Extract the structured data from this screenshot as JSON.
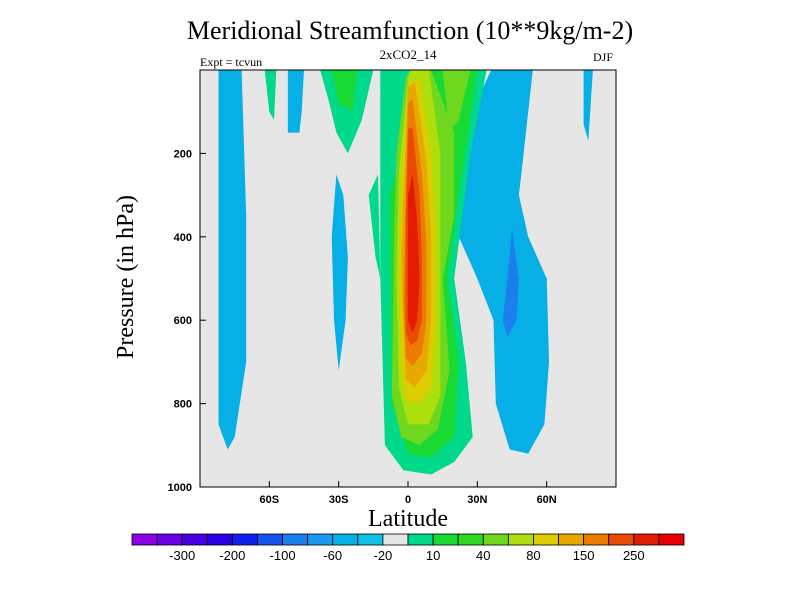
{
  "chart_data": {
    "type": "heatmap",
    "title": "Meridional Streamfunction (10**9kg/m-2)",
    "subtitle": "2xCO2_14",
    "left_label": "Expt = tcvun",
    "right_label": "DJF",
    "xlabel": "Latitude",
    "ylabel": "Pressure (in hPa)",
    "xlim": [
      -90,
      90
    ],
    "ylim": [
      1000,
      0
    ],
    "y_reversed": true,
    "xticks": [
      {
        "value": -60,
        "label": "60S"
      },
      {
        "value": -30,
        "label": "30S"
      },
      {
        "value": 0,
        "label": "0"
      },
      {
        "value": 30,
        "label": "30N"
      },
      {
        "value": 60,
        "label": "60N"
      }
    ],
    "yticks": [
      {
        "value": 200,
        "label": "200"
      },
      {
        "value": 400,
        "label": "400"
      },
      {
        "value": 600,
        "label": "600"
      },
      {
        "value": 800,
        "label": "800"
      },
      {
        "value": 1000,
        "label": "1000"
      }
    ],
    "background_color": "#e6e6e6",
    "colorbar": {
      "levels": [
        -350,
        -300,
        -250,
        -200,
        -150,
        -100,
        -80,
        -60,
        -40,
        -20,
        -10,
        10,
        20,
        40,
        60,
        80,
        100,
        150,
        200,
        250,
        300
      ],
      "labels": [
        {
          "index": 1,
          "label": "-300"
        },
        {
          "index": 3,
          "label": "-200"
        },
        {
          "index": 5,
          "label": "-100"
        },
        {
          "index": 7,
          "label": "-60"
        },
        {
          "index": 9,
          "label": "-20"
        },
        {
          "index": 11,
          "label": "10"
        },
        {
          "index": 13,
          "label": "40"
        },
        {
          "index": 15,
          "label": "80"
        },
        {
          "index": 17,
          "label": "150"
        },
        {
          "index": 19,
          "label": "250"
        }
      ],
      "colors": [
        "#8c00e6",
        "#6a00e6",
        "#4a00e6",
        "#2a00e6",
        "#0f20ee",
        "#1454ee",
        "#1b7fee",
        "#1a9aee",
        "#06b0e6",
        "#0fc2e6",
        "#e6e6e6",
        "#00d88a",
        "#18da32",
        "#2ed820",
        "#6ed81e",
        "#aede0c",
        "#ddcc00",
        "#e8a800",
        "#eb7c00",
        "#ea4b00",
        "#e31c00",
        "#e60000"
      ]
    },
    "regions": [
      {
        "value": -20,
        "color": "#06b0e6",
        "points": [
          [
            -82,
            1000
          ],
          [
            -82,
            0
          ],
          [
            -72,
            0
          ],
          [
            -70,
            350
          ],
          [
            -70,
            700
          ],
          [
            -75,
            880
          ],
          [
            -78,
            910
          ],
          [
            -82,
            850
          ]
        ]
      },
      {
        "value": -20,
        "color": "#06b0e6",
        "points": [
          [
            -52,
            0
          ],
          [
            -45,
            0
          ],
          [
            -46,
            100
          ],
          [
            -47,
            150
          ],
          [
            -52,
            150
          ]
        ]
      },
      {
        "value": -20,
        "color": "#06b0e6",
        "points": [
          [
            -31,
            250
          ],
          [
            -28,
            300
          ],
          [
            -26,
            450
          ],
          [
            -27,
            600
          ],
          [
            -30,
            720
          ],
          [
            -32,
            600
          ],
          [
            -33,
            400
          ]
        ]
      },
      {
        "value": -20,
        "color": "#06b0e6",
        "points": [
          [
            20,
            150
          ],
          [
            26,
            120
          ],
          [
            36,
            0
          ],
          [
            54,
            0
          ],
          [
            50,
            200
          ],
          [
            48,
            300
          ],
          [
            52,
            400
          ],
          [
            60,
            500
          ],
          [
            61,
            700
          ],
          [
            59,
            850
          ],
          [
            52,
            920
          ],
          [
            44,
            910
          ],
          [
            38,
            800
          ],
          [
            37,
            600
          ],
          [
            30,
            500
          ],
          [
            22,
            400
          ],
          [
            19,
            300
          ]
        ]
      },
      {
        "value": -20,
        "color": "#06b0e6",
        "points": [
          [
            80,
            0
          ],
          [
            78,
            170
          ],
          [
            76,
            130
          ],
          [
            76,
            0
          ]
        ]
      },
      {
        "value": -40,
        "color": "#1a9aee",
        "points": [
          [
            6,
            0
          ],
          [
            18,
            0
          ],
          [
            16,
            60
          ],
          [
            10,
            60
          ]
        ]
      },
      {
        "value": -60,
        "color": "#1b7fee",
        "points": [
          [
            45,
            380
          ],
          [
            48,
            500
          ],
          [
            47,
            600
          ],
          [
            43,
            640
          ],
          [
            41,
            600
          ],
          [
            43,
            500
          ]
        ]
      },
      {
        "value": -80,
        "color": "#1454ee",
        "points": [
          [
            9,
            0
          ],
          [
            15,
            0
          ],
          [
            13,
            40
          ],
          [
            11,
            40
          ]
        ]
      },
      {
        "value": 10,
        "color": "#00d88a",
        "points": [
          [
            -38,
            0
          ],
          [
            -15,
            0
          ],
          [
            -20,
            120
          ],
          [
            -26,
            200
          ],
          [
            -31,
            150
          ],
          [
            -34,
            80
          ]
        ]
      },
      {
        "value": 10,
        "color": "#00d88a",
        "points": [
          [
            -12,
            500
          ],
          [
            -10,
            900
          ],
          [
            -2,
            960
          ],
          [
            10,
            970
          ],
          [
            20,
            940
          ],
          [
            28,
            880
          ],
          [
            25,
            700
          ],
          [
            20,
            500
          ],
          [
            27,
            200
          ],
          [
            34,
            0
          ],
          [
            -12,
            0
          ]
        ]
      },
      {
        "value": 10,
        "color": "#00d88a",
        "points": [
          [
            -17,
            300
          ],
          [
            -13,
            250
          ],
          [
            -12,
            500
          ],
          [
            -14,
            450
          ]
        ]
      },
      {
        "value": 10,
        "color": "#00d88a",
        "points": [
          [
            -62,
            0
          ],
          [
            -57,
            0
          ],
          [
            -58,
            120
          ],
          [
            -60,
            100
          ]
        ]
      },
      {
        "value": 20,
        "color": "#18da32",
        "points": [
          [
            -10,
            0
          ],
          [
            1,
            0
          ],
          [
            -2,
            200
          ],
          [
            -8,
            300
          ],
          [
            -7,
            800
          ],
          [
            0,
            920
          ],
          [
            10,
            930
          ],
          [
            20,
            880
          ],
          [
            22,
            700
          ],
          [
            17,
            500
          ],
          [
            22,
            300
          ],
          [
            30,
            0
          ],
          [
            -10,
            0
          ]
        ]
      },
      {
        "value": 20,
        "color": "#18da32",
        "points": [
          [
            -33,
            0
          ],
          [
            -22,
            0
          ],
          [
            -24,
            100
          ],
          [
            -30,
            80
          ]
        ]
      },
      {
        "value": 40,
        "color": "#6ed81e",
        "points": [
          [
            -5,
            200
          ],
          [
            -1,
            20
          ],
          [
            1,
            0
          ],
          [
            10,
            0
          ],
          [
            20,
            150
          ],
          [
            20,
            350
          ],
          [
            15,
            500
          ],
          [
            18,
            720
          ],
          [
            13,
            860
          ],
          [
            5,
            900
          ],
          [
            -3,
            880
          ],
          [
            -7,
            780
          ],
          [
            -6,
            400
          ]
        ]
      },
      {
        "value": 40,
        "color": "#6ed81e",
        "points": [
          [
            15,
            0
          ],
          [
            27,
            0
          ],
          [
            22,
            120
          ],
          [
            18,
            150
          ]
        ]
      },
      {
        "value": 60,
        "color": "#aede0c",
        "points": [
          [
            -4,
            250
          ],
          [
            0,
            20
          ],
          [
            1,
            0
          ],
          [
            9,
            0
          ],
          [
            14,
            200
          ],
          [
            14,
            400
          ],
          [
            14,
            600
          ],
          [
            14,
            780
          ],
          [
            9,
            850
          ],
          [
            0,
            850
          ],
          [
            -4,
            760
          ],
          [
            -5,
            500
          ]
        ]
      },
      {
        "value": 80,
        "color": "#ddcc00",
        "points": [
          [
            -3,
            280
          ],
          [
            0,
            30
          ],
          [
            5,
            20
          ],
          [
            10,
            200
          ],
          [
            12,
            400
          ],
          [
            12,
            620
          ],
          [
            10,
            760
          ],
          [
            5,
            800
          ],
          [
            -1,
            790
          ],
          [
            -3,
            700
          ],
          [
            -4,
            500
          ]
        ]
      },
      {
        "value": 100,
        "color": "#e8a800",
        "points": [
          [
            -2,
            300
          ],
          [
            0,
            40
          ],
          [
            3,
            30
          ],
          [
            8,
            220
          ],
          [
            10,
            400
          ],
          [
            10,
            600
          ],
          [
            8,
            720
          ],
          [
            3,
            760
          ],
          [
            -1,
            740
          ],
          [
            -2,
            600
          ],
          [
            -3,
            450
          ]
        ]
      },
      {
        "value": 150,
        "color": "#eb7c00",
        "points": [
          [
            -1,
            320
          ],
          [
            0,
            80
          ],
          [
            2,
            70
          ],
          [
            6,
            250
          ],
          [
            8,
            420
          ],
          [
            8,
            600
          ],
          [
            6,
            680
          ],
          [
            2,
            710
          ],
          [
            -1,
            690
          ],
          [
            -2,
            550
          ]
        ]
      },
      {
        "value": 200,
        "color": "#ea4b00",
        "points": [
          [
            -1,
            360
          ],
          [
            0,
            140
          ],
          [
            2,
            140
          ],
          [
            5,
            300
          ],
          [
            6,
            450
          ],
          [
            6,
            600
          ],
          [
            4,
            650
          ],
          [
            1,
            660
          ],
          [
            -1,
            630
          ],
          [
            -1,
            480
          ]
        ]
      },
      {
        "value": 250,
        "color": "#e31c00",
        "points": [
          [
            0,
            420
          ],
          [
            0,
            300
          ],
          [
            2,
            250
          ],
          [
            4,
            360
          ],
          [
            5,
            500
          ],
          [
            4,
            600
          ],
          [
            2,
            630
          ],
          [
            0,
            600
          ]
        ]
      }
    ]
  }
}
